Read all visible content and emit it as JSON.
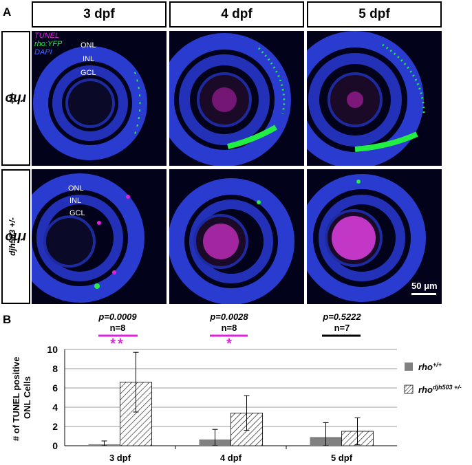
{
  "panel_a": {
    "letter": "A",
    "columns": [
      "3 dpf",
      "4 dpf",
      "5 dpf"
    ],
    "rows": [
      {
        "base": "rho",
        "sup": "+/+"
      },
      {
        "base": "rho",
        "sup": "djh503 +/-"
      }
    ],
    "legend": {
      "tunel": "TUNEL",
      "rho_yfp": "rho:YFP",
      "dapi": "DAPI"
    },
    "layer_labels": [
      "ONL",
      "INL",
      "GCL"
    ],
    "scale_bar": "50 μm"
  },
  "panel_b": {
    "letter": "B",
    "significance": [
      {
        "p": "p=0.0009",
        "n": "n=8",
        "stars": "**",
        "color": "#e020e0"
      },
      {
        "p": "p=0.0028",
        "n": "n=8",
        "stars": "*",
        "color": "#e020e0"
      },
      {
        "p": "p=0.5222",
        "n": "n=7",
        "stars": "",
        "color": "#000000"
      }
    ]
  },
  "colors": {
    "tunel": "#e020e0",
    "yfp": "#22ee44",
    "dapi": "#3344dd",
    "wt_bar": "#808080"
  },
  "chart_data": {
    "type": "bar",
    "categories": [
      "3 dpf",
      "4 dpf",
      "5 dpf"
    ],
    "ylabel": "# of TUNEL positive ONL Cells",
    "ylim": [
      0,
      10
    ],
    "yticks": [
      0,
      2,
      4,
      6,
      8,
      10
    ],
    "grid": true,
    "legend_position": "right",
    "series": [
      {
        "name_base": "rho",
        "name_sup": "+/+",
        "fill": "solid-gray",
        "values": [
          0.15,
          0.65,
          0.9
        ],
        "errors": [
          0.35,
          1.05,
          1.5
        ]
      },
      {
        "name_base": "rho",
        "name_sup": "djh503 +/-",
        "fill": "hatched",
        "values": [
          6.6,
          3.4,
          1.5
        ],
        "errors": [
          3.1,
          1.8,
          1.4
        ]
      }
    ]
  }
}
